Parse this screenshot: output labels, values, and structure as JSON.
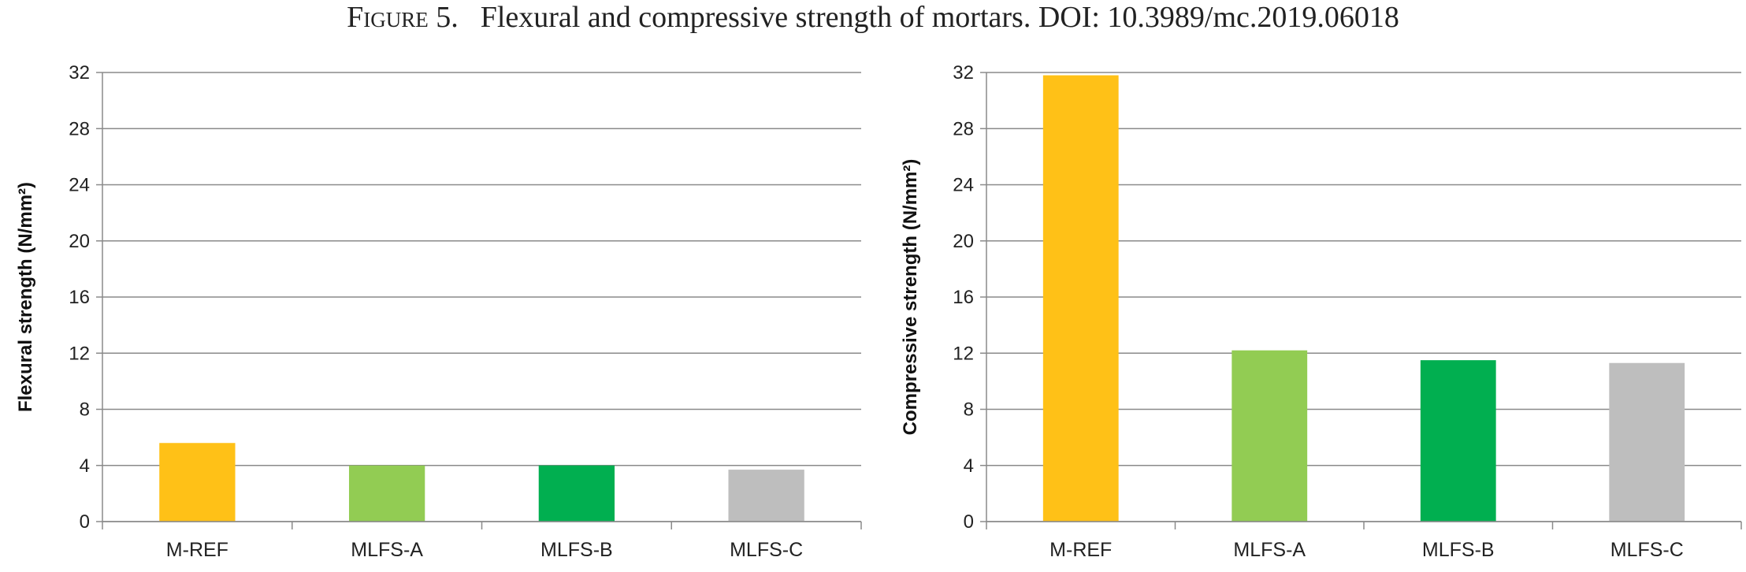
{
  "caption": {
    "figure": "Figure 5.",
    "text": "Flexural and compressive strength of mortars. DOI: 10.3989/mc.2019.06018"
  },
  "chart_data": [
    {
      "type": "bar",
      "categories": [
        "M-REF",
        "MLFS-A",
        "MLFS-B",
        "MLFS-C"
      ],
      "values": [
        5.6,
        4.0,
        4.0,
        3.7
      ],
      "colors": [
        "#FFC117",
        "#92CC53",
        "#01AF50",
        "#BEBEBE"
      ],
      "ylabel": "Flexural strength (N/mm²)",
      "ylim": [
        0,
        32
      ],
      "yticks": [
        0,
        4,
        8,
        12,
        16,
        20,
        24,
        28,
        32
      ],
      "grid": true
    },
    {
      "type": "bar",
      "categories": [
        "M-REF",
        "MLFS-A",
        "MLFS-B",
        "MLFS-C"
      ],
      "values": [
        31.8,
        12.2,
        11.5,
        11.3
      ],
      "colors": [
        "#FFC117",
        "#92CC53",
        "#01AF50",
        "#BEBEBE"
      ],
      "ylabel": "Compressive strength (N/mm²)",
      "ylim": [
        0,
        32
      ],
      "yticks": [
        0,
        4,
        8,
        12,
        16,
        20,
        24,
        28,
        32
      ],
      "grid": true
    }
  ]
}
